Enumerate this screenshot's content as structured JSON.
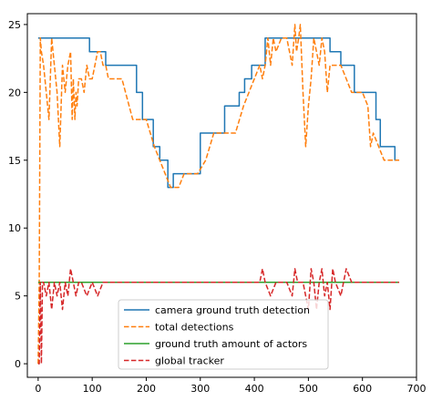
{
  "chart_data": {
    "type": "line",
    "xlim": [
      -20,
      700
    ],
    "ylim": [
      -1,
      25.8
    ],
    "xticks": [
      0,
      100,
      200,
      300,
      400,
      500,
      600,
      700
    ],
    "yticks": [
      0,
      5,
      10,
      15,
      20,
      25
    ],
    "grid": false,
    "legend_position": "lower-center",
    "series": [
      {
        "name": "camera ground truth detection",
        "color": "#1f77b4",
        "dash": "solid",
        "x": [
          0,
          95,
          95,
          125,
          125,
          160,
          160,
          182,
          182,
          193,
          193,
          213,
          213,
          225,
          225,
          240,
          240,
          250,
          250,
          262,
          262,
          300,
          300,
          315,
          315,
          327,
          327,
          345,
          345,
          372,
          372,
          382,
          382,
          390,
          390,
          395,
          395,
          420,
          420,
          440,
          440,
          540,
          540,
          560,
          560,
          585,
          585,
          625,
          625,
          633,
          633,
          660,
          660,
          668
        ],
        "y": [
          24,
          24,
          23,
          23,
          22,
          22,
          22,
          22,
          20,
          20,
          18,
          18,
          16,
          16,
          15,
          15,
          13,
          13,
          14,
          14,
          14,
          14,
          17,
          17,
          17,
          17,
          17,
          17,
          19,
          19,
          20,
          20,
          21,
          21,
          21,
          21,
          22,
          22,
          24,
          24,
          24,
          24,
          23,
          23,
          22,
          22,
          20,
          20,
          18,
          18,
          16,
          16,
          15,
          15
        ]
      },
      {
        "name": "total detections",
        "color": "#ff7f0e",
        "dash": "dashed",
        "x": [
          0,
          2,
          4,
          6,
          10,
          15,
          20,
          25,
          30,
          35,
          40,
          45,
          50,
          55,
          60,
          63,
          65,
          68,
          70,
          72,
          75,
          80,
          85,
          90,
          95,
          100,
          105,
          110,
          115,
          120,
          125,
          130,
          140,
          155,
          175,
          190,
          200,
          215,
          225,
          235,
          245,
          260,
          270,
          285,
          295,
          310,
          325,
          345,
          355,
          365,
          380,
          390,
          400,
          410,
          415,
          420,
          425,
          430,
          435,
          440,
          450,
          460,
          470,
          475,
          478,
          482,
          485,
          490,
          495,
          500,
          505,
          510,
          515,
          520,
          525,
          530,
          535,
          540,
          550,
          560,
          570,
          580,
          590,
          600,
          610,
          615,
          620,
          630,
          640,
          650,
          668
        ],
        "y": [
          0,
          6,
          24,
          23,
          22,
          20,
          18,
          24,
          22,
          20,
          16,
          22,
          20,
          22,
          23,
          18,
          21,
          18,
          20,
          19,
          21,
          21,
          20,
          22,
          21,
          21,
          22,
          23,
          23,
          22,
          22,
          21,
          21,
          21,
          18,
          18,
          18,
          16,
          15,
          14,
          13,
          13,
          14,
          14,
          14,
          15,
          17,
          17,
          17,
          17,
          19,
          20,
          21,
          22,
          21,
          22,
          24,
          22,
          24,
          23,
          24,
          24,
          22,
          25,
          23,
          24,
          25,
          20,
          16,
          19,
          21,
          24,
          23,
          22,
          24,
          23,
          20,
          22,
          22,
          22,
          21,
          20,
          20,
          20,
          19,
          16,
          17,
          16,
          15,
          15,
          15
        ]
      },
      {
        "name": "ground truth amount of actors",
        "color": "#2ca02c",
        "dash": "solid",
        "x": [
          0,
          668
        ],
        "y": [
          6,
          6
        ]
      },
      {
        "name": "global tracker",
        "color": "#d62728",
        "dash": "dashed",
        "x": [
          0,
          2,
          4,
          6,
          8,
          10,
          15,
          20,
          25,
          30,
          35,
          40,
          45,
          50,
          55,
          60,
          65,
          70,
          75,
          80,
          90,
          100,
          110,
          120,
          130,
          200,
          300,
          400,
          410,
          415,
          420,
          430,
          440,
          450,
          460,
          470,
          475,
          480,
          490,
          495,
          500,
          505,
          510,
          515,
          520,
          525,
          530,
          535,
          540,
          545,
          550,
          560,
          570,
          580,
          600,
          668
        ],
        "y": [
          0,
          0,
          6,
          0,
          6,
          6,
          5,
          6,
          4,
          6,
          5,
          6,
          4,
          6,
          5,
          7,
          6,
          5,
          6,
          6,
          5,
          6,
          5,
          6,
          6,
          6,
          6,
          6,
          6,
          7,
          6,
          5,
          6,
          6,
          6,
          5,
          7,
          6,
          6,
          5,
          4,
          7,
          6,
          4,
          6,
          7,
          5,
          6,
          4,
          7,
          6,
          5,
          7,
          6,
          6,
          6
        ]
      }
    ]
  }
}
